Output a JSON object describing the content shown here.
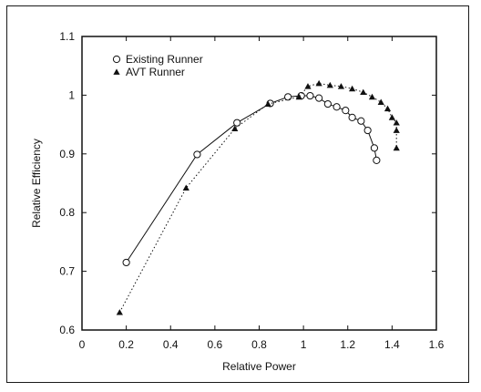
{
  "chart_data": {
    "type": "scatter",
    "xlabel": "Relative Power",
    "ylabel": "Relative Efficiency",
    "xlim": [
      0,
      1.6
    ],
    "ylim": [
      0.6,
      1.1
    ],
    "x_ticks": [
      "0",
      "0.2",
      "0.4",
      "0.6",
      "0.8",
      "1",
      "1.2",
      "1.4",
      "1.6"
    ],
    "y_ticks": [
      "0.6",
      "0.7",
      "0.8",
      "0.9",
      "1",
      "1.1"
    ],
    "grid": false,
    "legend_position": "top-left",
    "series": [
      {
        "name": "Existing Runner",
        "marker": "open-circle",
        "line": "solid",
        "color": "#111111",
        "x": [
          0.2,
          0.52,
          0.7,
          0.85,
          0.93,
          0.99,
          1.03,
          1.07,
          1.11,
          1.15,
          1.19,
          1.22,
          1.26,
          1.29,
          1.32,
          1.33
        ],
        "y": [
          0.715,
          0.899,
          0.953,
          0.986,
          0.997,
          0.999,
          0.999,
          0.995,
          0.985,
          0.98,
          0.974,
          0.962,
          0.956,
          0.94,
          0.91,
          0.889
        ]
      },
      {
        "name": "AVT Runner",
        "marker": "filled-triangle",
        "line": "dotted",
        "color": "#111111",
        "x": [
          0.17,
          0.47,
          0.69,
          0.84,
          0.98,
          1.02,
          1.07,
          1.12,
          1.17,
          1.22,
          1.27,
          1.31,
          1.35,
          1.38,
          1.4,
          1.42,
          1.42,
          1.42
        ],
        "y": [
          0.63,
          0.842,
          0.943,
          0.985,
          0.997,
          1.015,
          1.02,
          1.017,
          1.015,
          1.011,
          1.005,
          0.997,
          0.988,
          0.977,
          0.962,
          0.953,
          0.94,
          0.91
        ]
      }
    ]
  }
}
